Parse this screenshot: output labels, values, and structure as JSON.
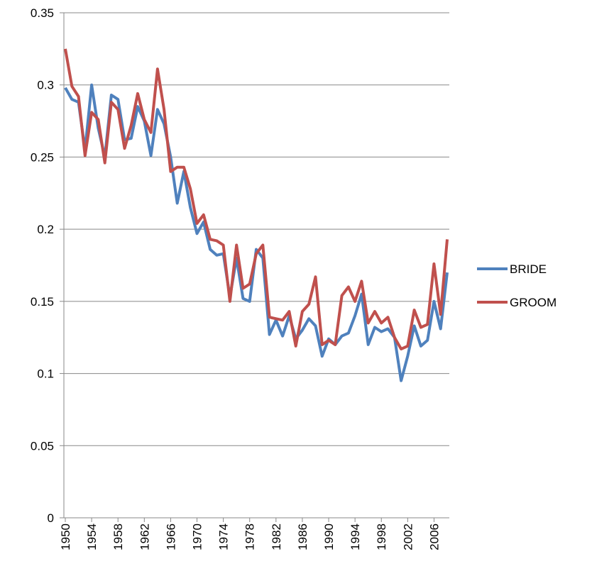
{
  "chart_data": {
    "type": "line",
    "categories": [
      "1950",
      null,
      null,
      null,
      "1954",
      null,
      null,
      null,
      "1958",
      null,
      null,
      null,
      "1962",
      null,
      null,
      null,
      "1966",
      null,
      null,
      null,
      "1970",
      null,
      null,
      null,
      "1974",
      null,
      null,
      null,
      "1978",
      null,
      null,
      null,
      "1982",
      null,
      null,
      null,
      "1986",
      null,
      null,
      null,
      "1990",
      null,
      null,
      null,
      "1994",
      null,
      null,
      null,
      "1998",
      null,
      null,
      null,
      "2002",
      null,
      null,
      null,
      "2006",
      null,
      null
    ],
    "series": [
      {
        "name": "BRIDE",
        "color": "#4f81bd",
        "values": [
          0.298,
          0.29,
          0.288,
          0.255,
          0.3,
          0.27,
          0.25,
          0.293,
          0.29,
          0.262,
          0.263,
          0.285,
          0.275,
          0.251,
          0.283,
          0.273,
          0.25,
          0.218,
          0.24,
          0.215,
          0.197,
          0.205,
          0.186,
          0.182,
          0.183,
          0.153,
          0.18,
          0.152,
          0.15,
          0.186,
          0.18,
          0.127,
          0.137,
          0.126,
          0.14,
          0.124,
          0.13,
          0.138,
          0.133,
          0.112,
          0.124,
          0.12,
          0.126,
          0.128,
          0.14,
          0.155,
          0.12,
          0.132,
          0.129,
          0.131,
          0.125,
          0.095,
          0.112,
          0.133,
          0.119,
          0.123,
          0.15,
          0.131,
          0.17
        ]
      },
      {
        "name": "GROOM",
        "color": "#c0504d",
        "values": [
          0.325,
          0.299,
          0.292,
          0.251,
          0.281,
          0.276,
          0.246,
          0.288,
          0.283,
          0.256,
          0.272,
          0.294,
          0.276,
          0.267,
          0.311,
          0.283,
          0.24,
          0.243,
          0.243,
          0.228,
          0.204,
          0.21,
          0.193,
          0.192,
          0.189,
          0.15,
          0.189,
          0.159,
          0.162,
          0.183,
          0.189,
          0.139,
          0.138,
          0.137,
          0.143,
          0.119,
          0.143,
          0.148,
          0.167,
          0.12,
          0.123,
          0.12,
          0.154,
          0.16,
          0.15,
          0.164,
          0.135,
          0.143,
          0.135,
          0.139,
          0.125,
          0.117,
          0.119,
          0.144,
          0.132,
          0.134,
          0.176,
          0.141,
          0.193
        ]
      }
    ],
    "ylim": [
      0,
      0.35
    ],
    "yticks": [
      0,
      0.05,
      0.1,
      0.15,
      0.2,
      0.25,
      0.3,
      0.35
    ],
    "grid": true,
    "legend": "right"
  }
}
